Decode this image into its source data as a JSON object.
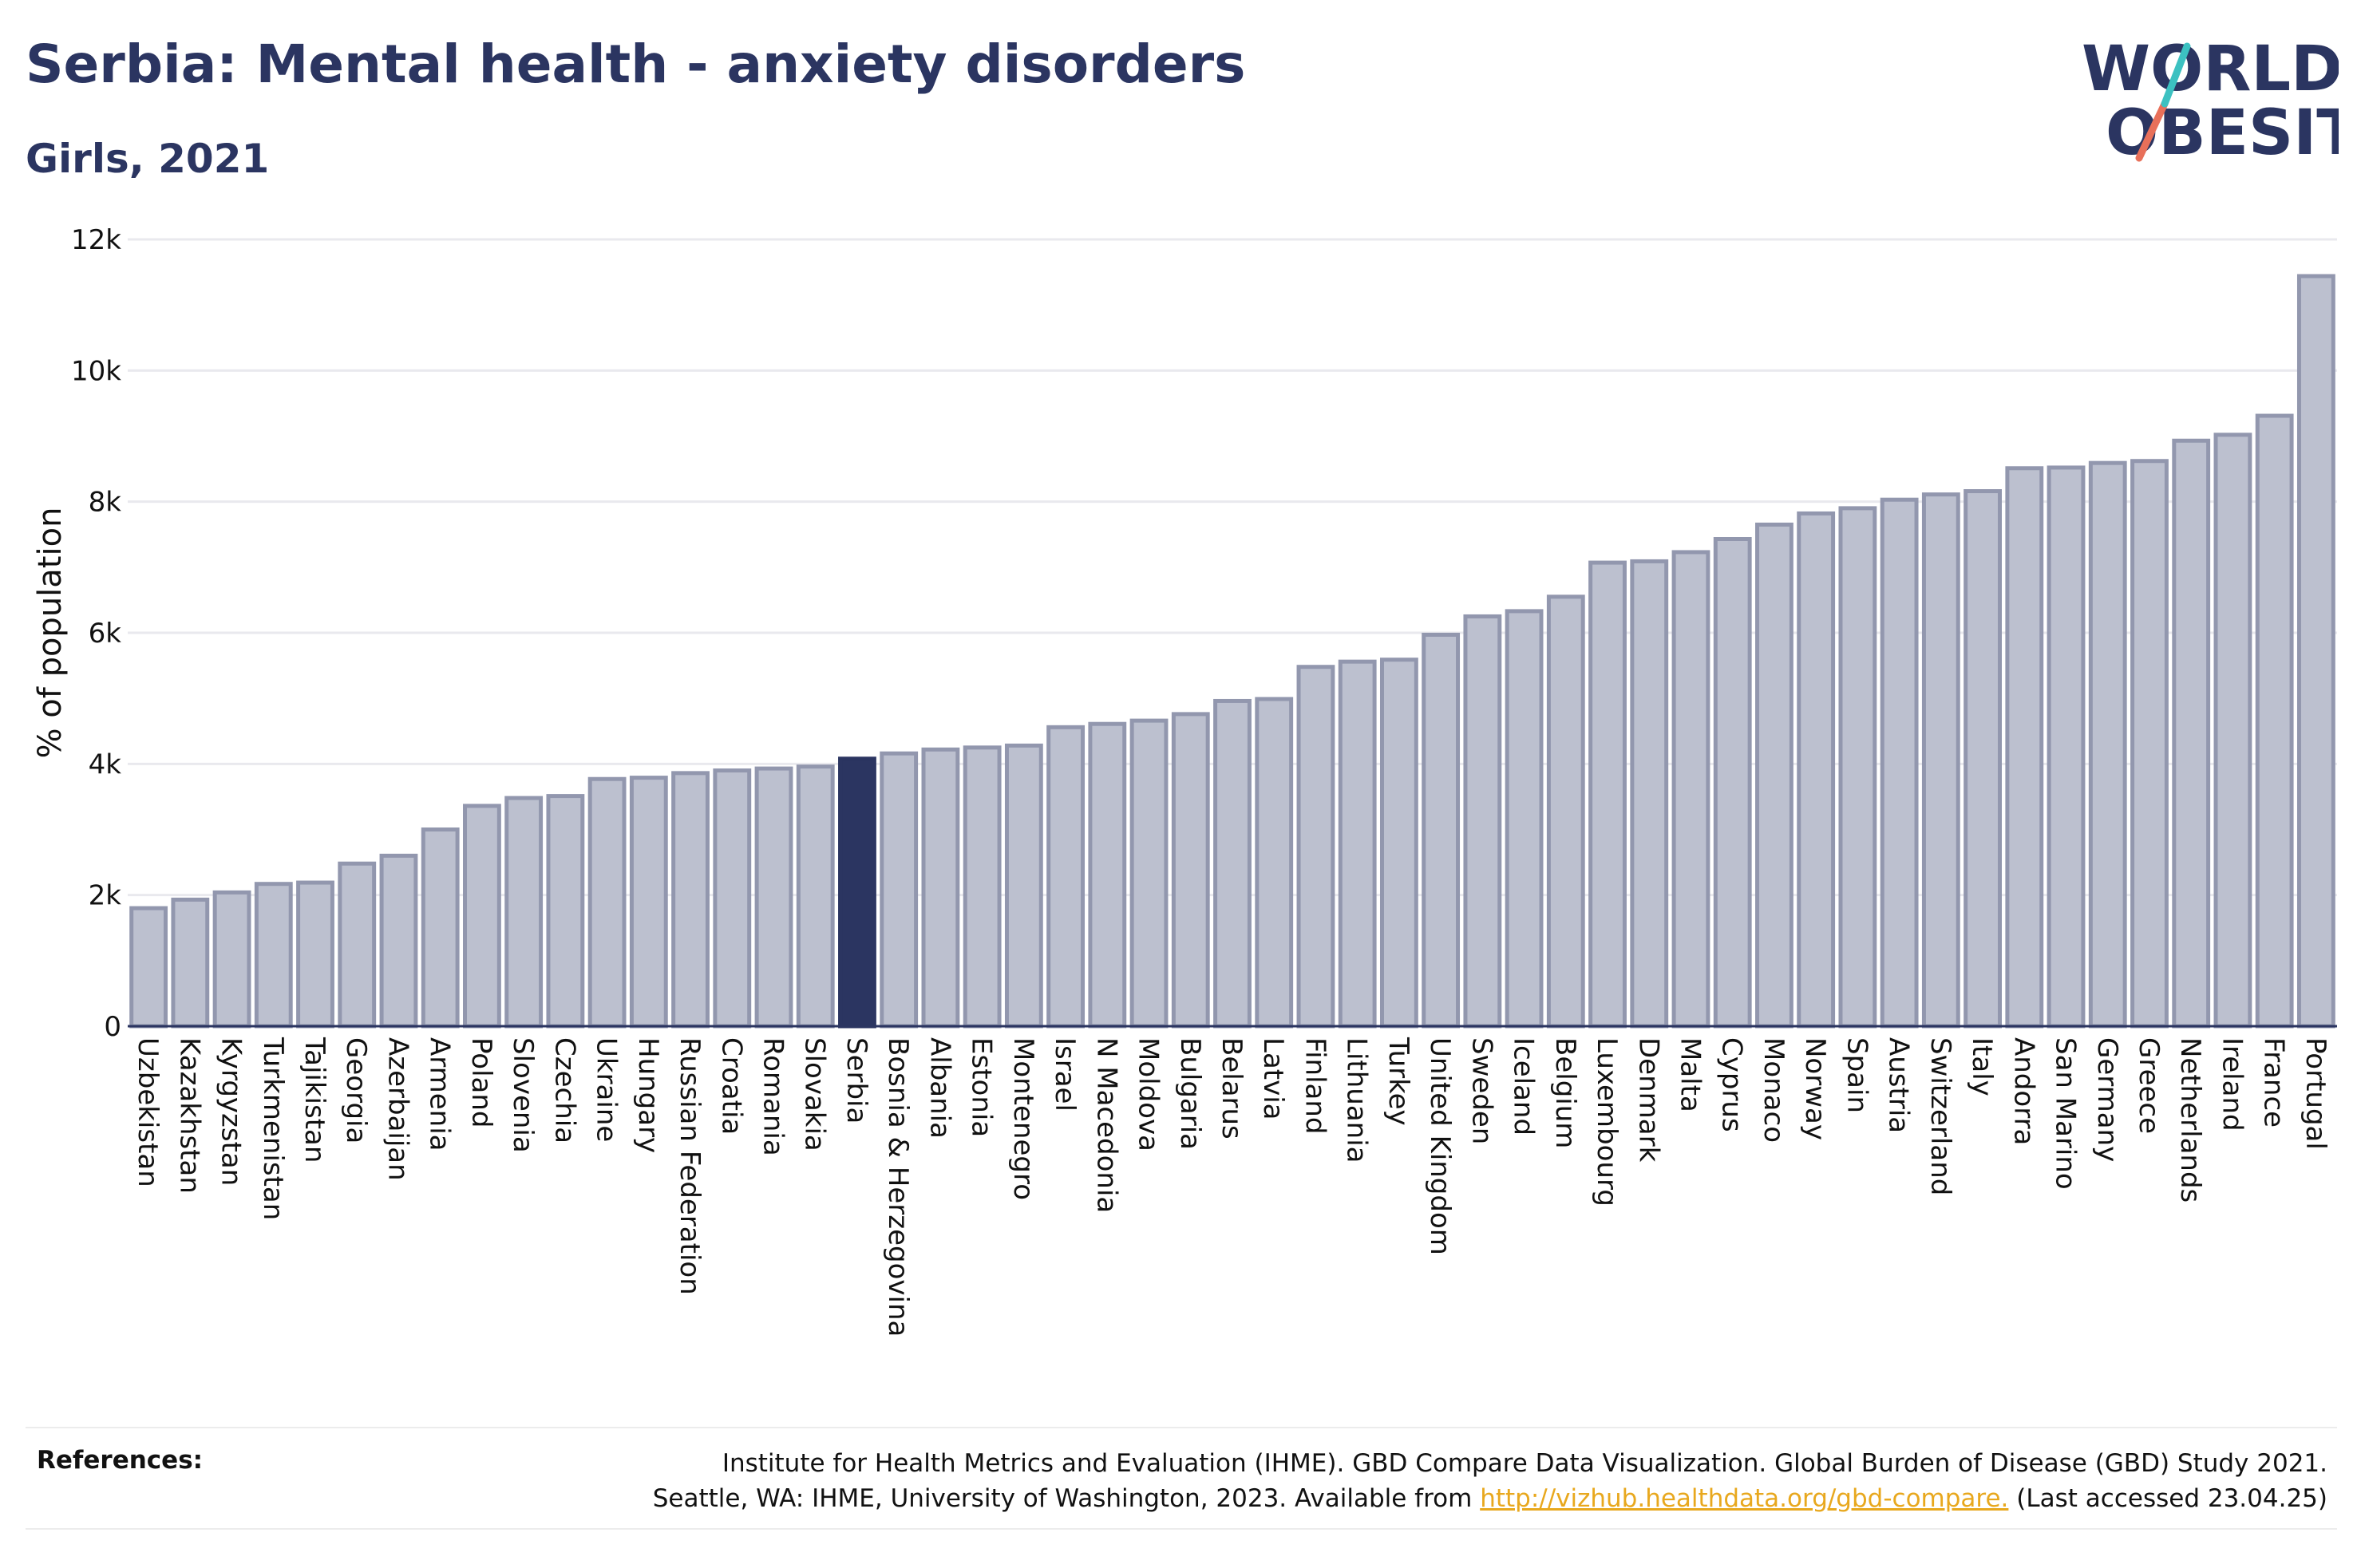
{
  "title": "Serbia: Mental health - anxiety disorders",
  "subtitle": "Girls, 2021",
  "logo": {
    "line1": "WORLD",
    "line2": "OBESITY"
  },
  "colors": {
    "highlight": "#2b3561",
    "bar": "#bcc0cf",
    "bar_border": "#9297ae",
    "accent_coral": "#e8705a",
    "accent_teal": "#3cc1c1",
    "link": "#e8a81e"
  },
  "chart_data": {
    "type": "bar",
    "title": "Serbia: Mental health - anxiety disorders",
    "subtitle": "Girls, 2021",
    "xlabel": "",
    "ylabel": "% of population",
    "ylim": [
      0,
      12000
    ],
    "yticks": [
      0,
      2000,
      4000,
      6000,
      8000,
      10000,
      12000
    ],
    "ytick_labels": [
      "0",
      "2k",
      "4k",
      "6k",
      "8k",
      "10k",
      "12k"
    ],
    "grid": true,
    "highlight": "Serbia",
    "categories": [
      "Uzbekistan",
      "Kazakhstan",
      "Kyrgyzstan",
      "Turkmenistan",
      "Tajikistan",
      "Georgia",
      "Azerbaijan",
      "Armenia",
      "Poland",
      "Slovenia",
      "Czechia",
      "Ukraine",
      "Hungary",
      "Russian Federation",
      "Croatia",
      "Romania",
      "Slovakia",
      "Serbia",
      "Bosnia & Herzegovina",
      "Albania",
      "Estonia",
      "Montenegro",
      "Israel",
      "N Macedonia",
      "Moldova",
      "Bulgaria",
      "Belarus",
      "Latvia",
      "Finland",
      "Lithuania",
      "Turkey",
      "United Kingdom",
      "Sweden",
      "Iceland",
      "Belgium",
      "Luxembourg",
      "Denmark",
      "Malta",
      "Cyprus",
      "Monaco",
      "Norway",
      "Spain",
      "Austria",
      "Switzerland",
      "Italy",
      "Andorra",
      "San Marino",
      "Germany",
      "Greece",
      "Netherlands",
      "Ireland",
      "France",
      "Portugal"
    ],
    "values": [
      1800,
      1930,
      2040,
      2170,
      2190,
      2480,
      2600,
      3000,
      3360,
      3480,
      3510,
      3770,
      3790,
      3860,
      3900,
      3930,
      3960,
      4080,
      4160,
      4220,
      4250,
      4280,
      4560,
      4610,
      4660,
      4760,
      4960,
      4990,
      5480,
      5560,
      5590,
      5970,
      6250,
      6330,
      6550,
      7070,
      7090,
      7230,
      7430,
      7650,
      7820,
      7900,
      8030,
      8110,
      8160,
      8510,
      8520,
      8590,
      8620,
      8930,
      9020,
      9310,
      11440
    ]
  },
  "references": {
    "label": "References:",
    "line1": "Institute for Health Metrics and Evaluation (IHME). GBD Compare Data Visualization. Global Burden of Disease (GBD) Study 2021.",
    "line2_prefix": "Seattle, WA: IHME, University of Washington, 2023. Available from ",
    "link_text": "http://vizhub.healthdata.org/gbd-compare.",
    "line2_suffix": " (Last accessed 23.04.25)"
  }
}
